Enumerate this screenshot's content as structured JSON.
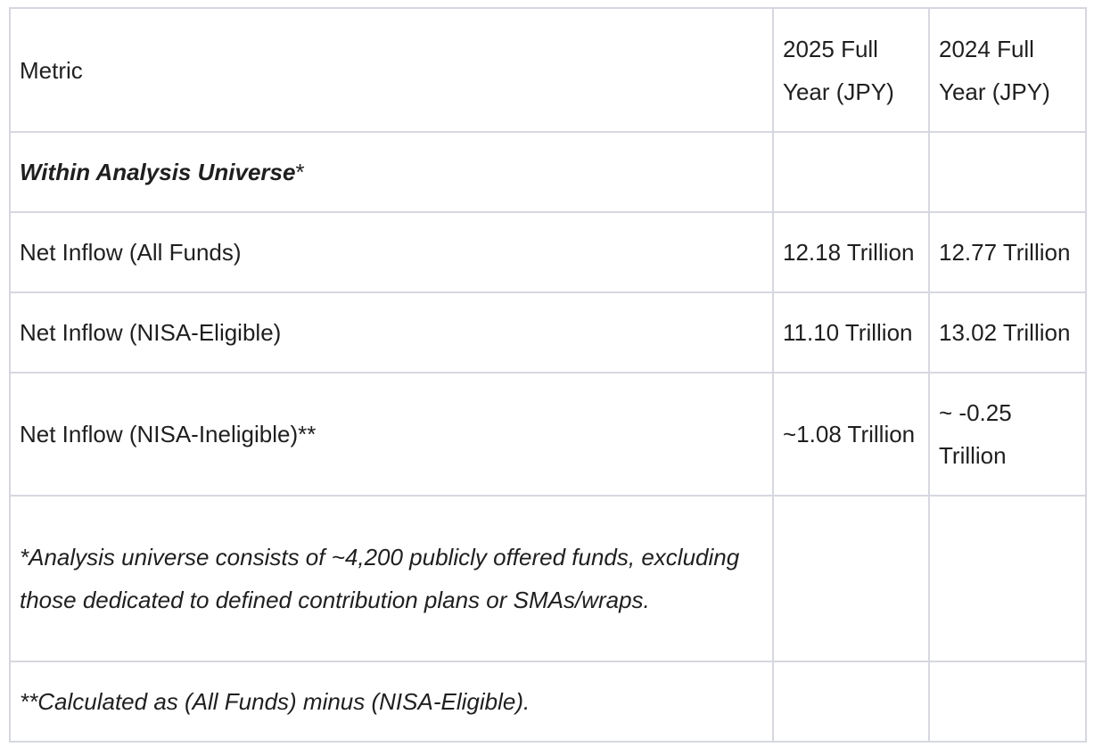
{
  "table": {
    "headers": {
      "metric": "Metric",
      "col_2025": "2025 Full Year (JPY)",
      "col_2024": "2024 Full Year (JPY)"
    },
    "section": {
      "title": "Within Analysis Universe",
      "marker": "*"
    },
    "rows": [
      {
        "metric": "Net Inflow (All Funds)",
        "v2025": "12.18 Trillion",
        "v2024": "12.77 Trillion"
      },
      {
        "metric": "Net Inflow (NISA-Eligible)",
        "v2025": "11.10 Trillion",
        "v2024": "13.02 Trillion"
      },
      {
        "metric": "Net Inflow (NISA-Ineligible)**",
        "v2025": "~1.08 Trillion",
        "v2024": "~ -0.25 Trillion"
      }
    ],
    "notes": [
      "*Analysis universe consists of ~4,200 publicly offered funds, excluding those dedicated to defined contribution plans or SMAs/wraps.",
      "**Calculated as (All Funds) minus (NISA-Eligible)."
    ]
  }
}
